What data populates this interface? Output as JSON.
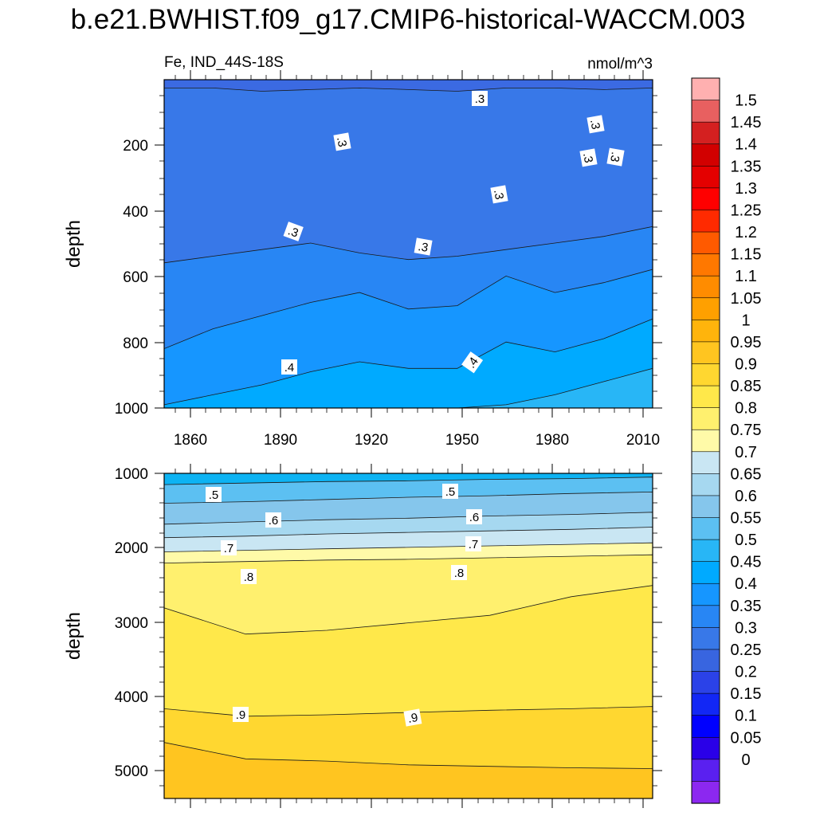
{
  "title": "b.e21.BWHIST.f09_g17.CMIP6-historical-WACCM.003",
  "left_subtitle": "Fe, IND_44S-18S",
  "right_subtitle": "nmol/m^3",
  "chart_data": [
    {
      "type": "heatmap",
      "panel": "upper",
      "ylabel": "depth",
      "xlim": [
        1850,
        2015
      ],
      "ylim": [
        1000,
        5
      ],
      "y_reversed": true,
      "x_ticks": [
        "1860",
        "1890",
        "1920",
        "1950",
        "1980",
        "2010"
      ],
      "y_ticks": [
        "200",
        "400",
        "600",
        "800",
        "1000"
      ],
      "contour_labels": [
        ".3",
        ".3",
        ".3",
        ".3",
        ".3",
        ".3",
        ".3",
        ".3",
        ".4",
        ".4"
      ],
      "isoline_depths": {
        "0.25": [
          30,
          30,
          40,
          35,
          30,
          35,
          40,
          30,
          30,
          35,
          30
        ],
        "0.3": [
          560,
          540,
          520,
          500,
          530,
          550,
          540,
          520,
          500,
          480,
          450
        ],
        "0.35": [
          820,
          760,
          720,
          680,
          650,
          700,
          690,
          600,
          650,
          620,
          580
        ],
        "0.4": [
          990,
          960,
          930,
          890,
          860,
          880,
          880,
          800,
          830,
          790,
          730
        ],
        "0.45": [
          1000,
          1000,
          1000,
          1000,
          1000,
          1000,
          1000,
          990,
          960,
          920,
          880
        ]
      }
    },
    {
      "type": "heatmap",
      "panel": "lower",
      "ylabel": "depth",
      "xlim": [
        1850,
        2015
      ],
      "ylim": [
        5350,
        1000
      ],
      "y_reversed": true,
      "x_ticks": [
        "1860",
        "1890",
        "1920",
        "1950",
        "1980",
        "2010"
      ],
      "y_ticks": [
        "1000",
        "2000",
        "3000",
        "4000",
        "5000"
      ],
      "contour_labels": [
        ".5",
        ".5",
        ".6",
        ".6",
        ".7",
        ".7",
        ".8",
        ".8",
        ".9",
        ".9"
      ],
      "isoline_depths": {
        "0.5": [
          1150,
          1130,
          1110,
          1100,
          1080,
          1070,
          1050
        ],
        "0.55": [
          1400,
          1380,
          1350,
          1320,
          1300,
          1270,
          1250
        ],
        "0.6": [
          1680,
          1650,
          1620,
          1600,
          1570,
          1550,
          1520
        ],
        "0.65": [
          1860,
          1840,
          1810,
          1790,
          1770,
          1750,
          1720
        ],
        "0.7": [
          2050,
          2030,
          2010,
          1990,
          1970,
          1950,
          1930
        ],
        "0.75": [
          2200,
          2180,
          2160,
          2150,
          2130,
          2110,
          2090
        ],
        "0.8": [
          2800,
          3150,
          3100,
          3000,
          2900,
          2650,
          2500
        ],
        "0.85": [
          4150,
          4250,
          4230,
          4200,
          4170,
          4150,
          4120
        ],
        "0.9": [
          4600,
          4820,
          4850,
          4900,
          4920,
          4940,
          4950
        ]
      }
    }
  ],
  "colorbar": {
    "labels": [
      "1.5",
      "1.45",
      "1.4",
      "1.35",
      "1.3",
      "1.25",
      "1.2",
      "1.15",
      "1.1",
      "1.05",
      "1",
      "0.95",
      "0.9",
      "0.85",
      "0.8",
      "0.75",
      "0.7",
      "0.65",
      "0.6",
      "0.55",
      "0.5",
      "0.45",
      "0.4",
      "0.35",
      "0.3",
      "0.25",
      "0.2",
      "0.15",
      "0.1",
      "0.05",
      "0"
    ],
    "colors_top_to_bottom": [
      "#ffb0b0",
      "#e86060",
      "#d42020",
      "#d20000",
      "#e40000",
      "#ff0000",
      "#ff2a00",
      "#ff5a00",
      "#ff7800",
      "#ff8c00",
      "#ffa000",
      "#ffb40c",
      "#ffc520",
      "#ffd730",
      "#ffe84a",
      "#fff06e",
      "#fffaa8",
      "#c9e6f3",
      "#a6d8f0",
      "#85c6ec",
      "#5cc0f2",
      "#28b6f6",
      "#00aaff",
      "#1696ff",
      "#2886f4",
      "#3878e8",
      "#3865e0",
      "#2b42e8",
      "#1227f5",
      "#0000ff",
      "#2a00e8",
      "#5a20f0",
      "#8c28f0"
    ]
  }
}
